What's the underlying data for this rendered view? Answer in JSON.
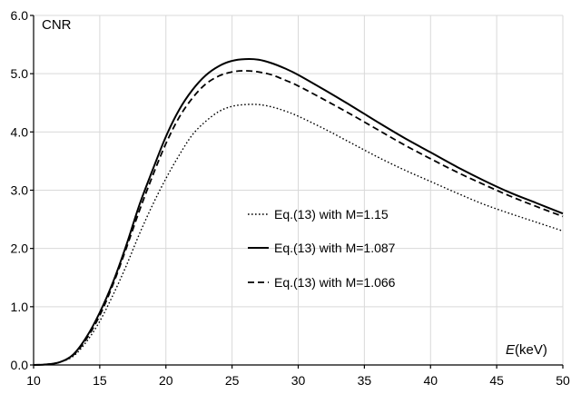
{
  "chart_data": {
    "type": "line",
    "title": "",
    "ylabel": "CNR",
    "xlabel_italic": "E",
    "xlabel_unit": "(keV)",
    "xlim": [
      10,
      50
    ],
    "ylim": [
      0,
      6
    ],
    "x_ticks": [
      10,
      15,
      20,
      25,
      30,
      35,
      40,
      45,
      50
    ],
    "y_ticks": [
      0,
      1,
      2,
      3,
      4,
      5,
      6
    ],
    "y_tick_labels": [
      "0.0",
      "1.0",
      "2.0",
      "3.0",
      "4.0",
      "5.0",
      "6.0"
    ],
    "grid": true,
    "legend_position": "center",
    "x": [
      10,
      11,
      12,
      13,
      14,
      15,
      16,
      17,
      18,
      19,
      20,
      21,
      22,
      23,
      24,
      25,
      26,
      27,
      28,
      29,
      30,
      32,
      34,
      36,
      38,
      40,
      42,
      44,
      46,
      48,
      50
    ],
    "series": [
      {
        "name": "Eq.(13) with M=1.15",
        "style": "dotted",
        "values": [
          0.0,
          0.01,
          0.05,
          0.15,
          0.4,
          0.75,
          1.2,
          1.7,
          2.25,
          2.75,
          3.2,
          3.6,
          3.95,
          4.18,
          4.35,
          4.44,
          4.47,
          4.47,
          4.43,
          4.36,
          4.27,
          4.05,
          3.81,
          3.57,
          3.35,
          3.15,
          2.95,
          2.76,
          2.6,
          2.45,
          2.3
        ]
      },
      {
        "name": "Eq.(13) with M=1.087",
        "style": "solid",
        "values": [
          0.0,
          0.01,
          0.05,
          0.18,
          0.48,
          0.9,
          1.42,
          2.05,
          2.75,
          3.35,
          3.92,
          4.38,
          4.72,
          4.97,
          5.13,
          5.22,
          5.25,
          5.24,
          5.18,
          5.09,
          4.98,
          4.72,
          4.45,
          4.17,
          3.9,
          3.65,
          3.4,
          3.17,
          2.96,
          2.78,
          2.6
        ]
      },
      {
        "name": "Eq.(13) with M=1.066",
        "style": "dashed",
        "values": [
          0.0,
          0.01,
          0.05,
          0.17,
          0.45,
          0.85,
          1.38,
          2.0,
          2.65,
          3.25,
          3.8,
          4.25,
          4.58,
          4.82,
          4.96,
          5.03,
          5.05,
          5.03,
          4.98,
          4.89,
          4.79,
          4.55,
          4.3,
          4.04,
          3.78,
          3.54,
          3.31,
          3.1,
          2.9,
          2.72,
          2.55
        ]
      }
    ]
  }
}
